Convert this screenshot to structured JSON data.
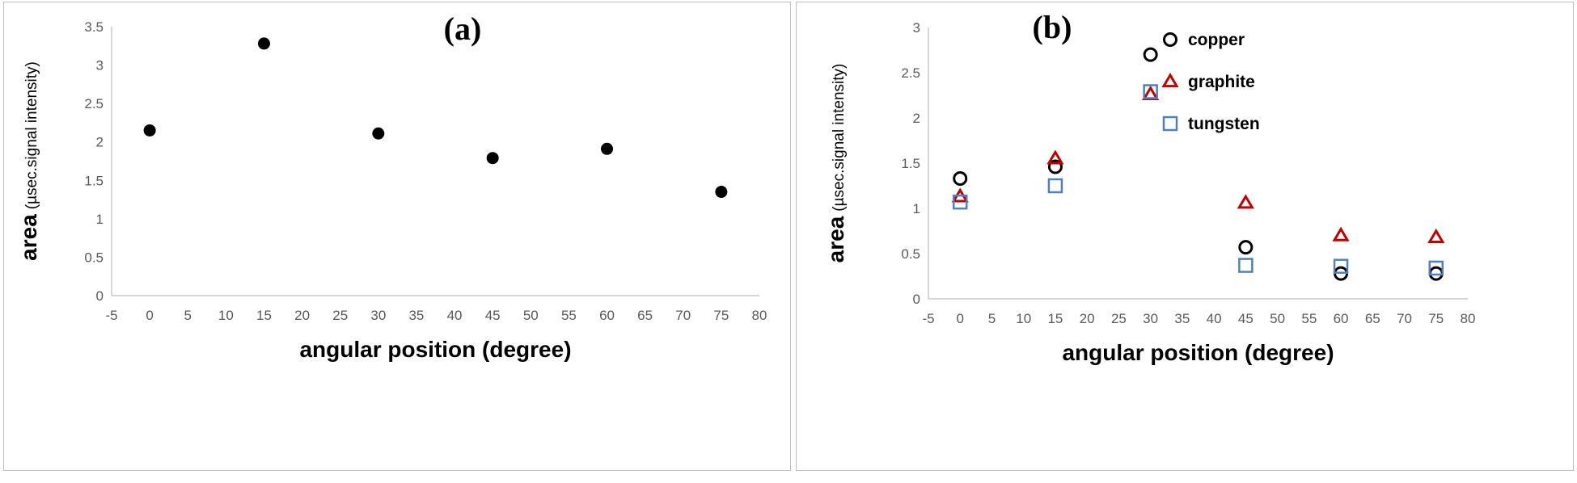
{
  "chart_data": [
    {
      "type": "scatter",
      "title": "(a)",
      "xlabel": "angular position (degree)",
      "ylabel_main": "area",
      "ylabel_sub": "(µsec.signal intensity)",
      "xlim": [
        -5,
        80
      ],
      "ylim": [
        0,
        3.5
      ],
      "xticks": [
        -5,
        0,
        5,
        10,
        15,
        20,
        25,
        30,
        35,
        40,
        45,
        50,
        55,
        60,
        65,
        70,
        75,
        80
      ],
      "yticks": [
        0,
        0.5,
        1,
        1.5,
        2,
        2.5,
        3,
        3.5
      ],
      "grid": false,
      "series": [
        {
          "x": [
            0,
            15,
            30,
            45,
            60,
            75
          ],
          "y": [
            2.15,
            3.28,
            2.11,
            1.79,
            1.91,
            1.35
          ],
          "marker": "filled-circle",
          "color": "#000000"
        }
      ]
    },
    {
      "type": "scatter",
      "title": "(b)",
      "xlabel": "angular position (degree)",
      "ylabel_main": "area",
      "ylabel_sub": "(µsec.signal intensity)",
      "xlim": [
        -5,
        80
      ],
      "ylim": [
        0,
        3
      ],
      "xticks": [
        -5,
        0,
        5,
        10,
        15,
        20,
        25,
        30,
        35,
        40,
        45,
        50,
        55,
        60,
        65,
        70,
        75,
        80
      ],
      "yticks": [
        0,
        0.5,
        1,
        1.5,
        2,
        2.5,
        3
      ],
      "grid": false,
      "legend_position": "top-right",
      "series": [
        {
          "name": "copper",
          "marker": "open-circle",
          "color": "#000000",
          "x": [
            0,
            15,
            30,
            45,
            60,
            75
          ],
          "y": [
            1.33,
            1.46,
            2.7,
            0.57,
            0.28,
            0.28
          ]
        },
        {
          "name": "graphite",
          "marker": "open-triangle",
          "color": "#c00000",
          "x": [
            0,
            15,
            30,
            45,
            60,
            75
          ],
          "y": [
            1.13,
            1.55,
            2.26,
            1.06,
            0.7,
            0.68
          ]
        },
        {
          "name": "tungsten",
          "marker": "open-square",
          "color": "#4f81bd",
          "x": [
            0,
            15,
            30,
            45,
            60,
            75
          ],
          "y": [
            1.07,
            1.25,
            2.29,
            0.37,
            0.36,
            0.34
          ]
        }
      ]
    }
  ]
}
